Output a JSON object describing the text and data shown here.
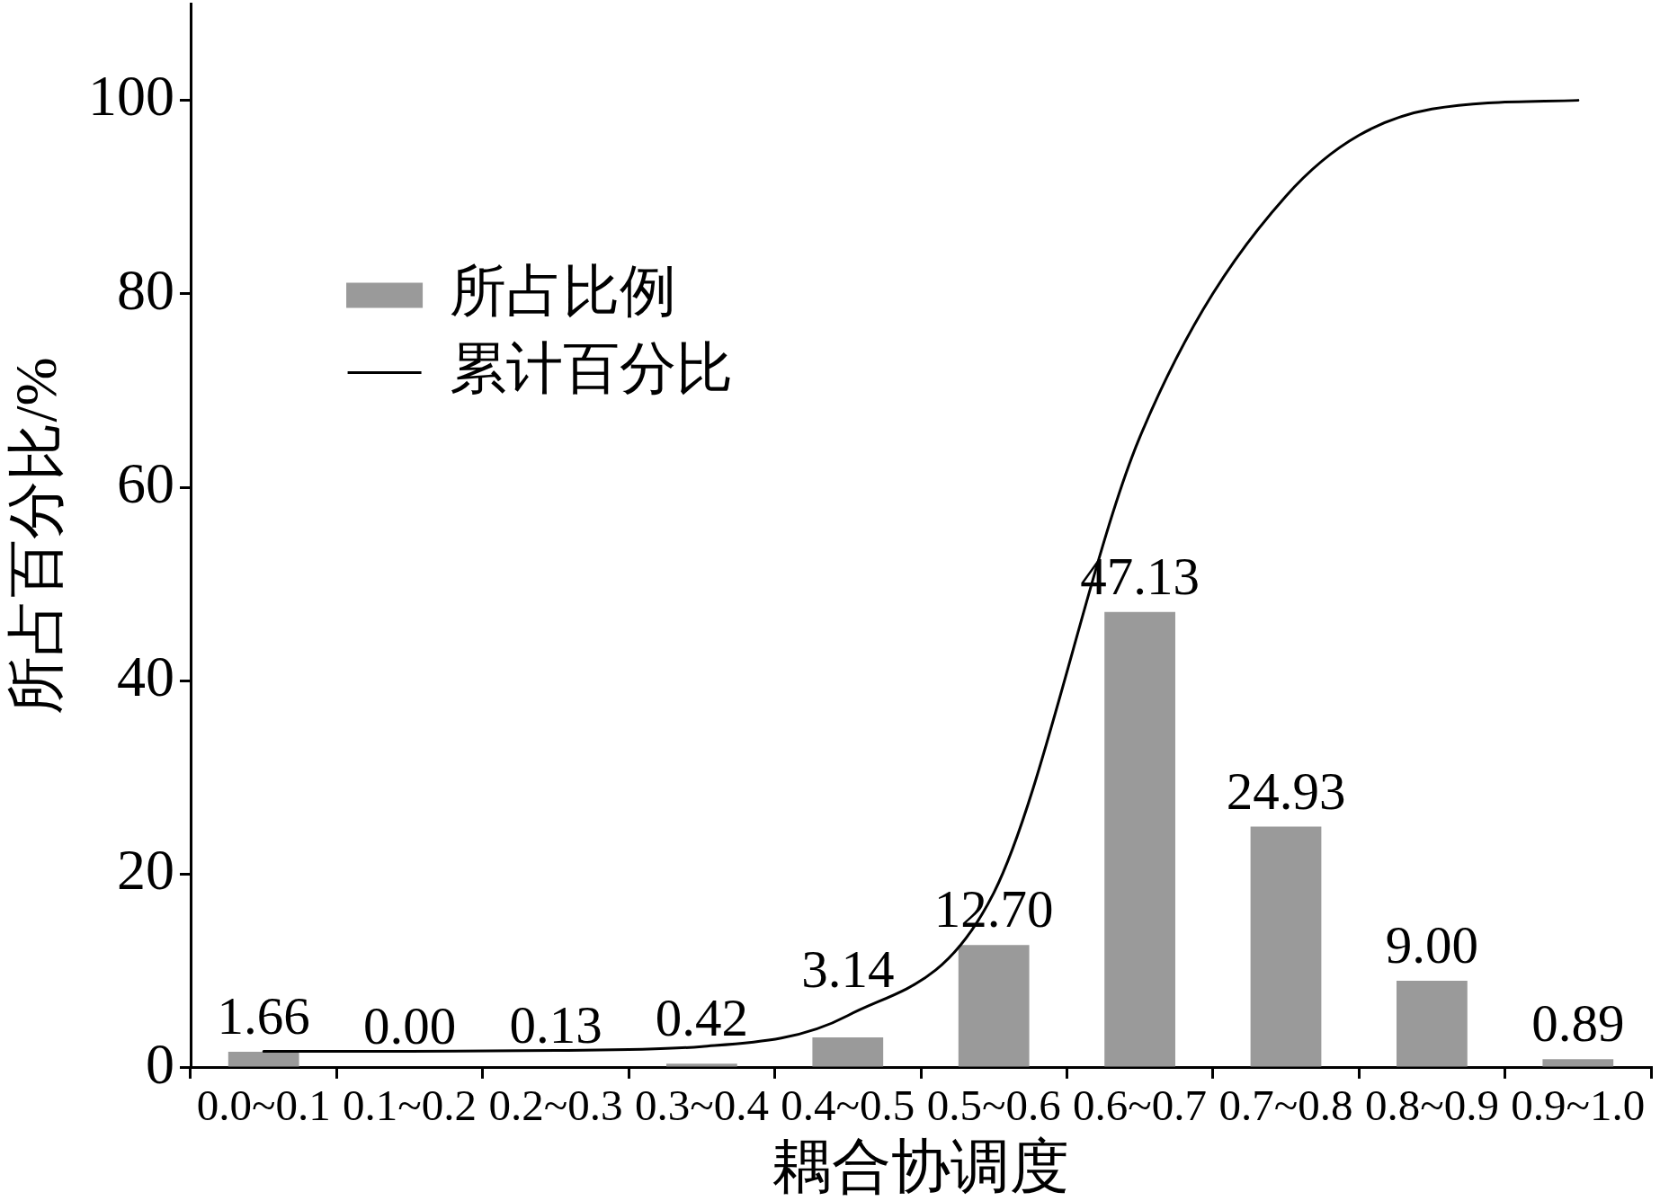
{
  "chart_data": {
    "type": "bar",
    "xlabel": "耦合协调度",
    "ylabel": "所占百分比/%",
    "categories": [
      "0.0~0.1",
      "0.1~0.2",
      "0.2~0.3",
      "0.3~0.4",
      "0.4~0.5",
      "0.5~0.6",
      "0.6~0.7",
      "0.7~0.8",
      "0.8~0.9",
      "0.9~1.0"
    ],
    "series": [
      {
        "name": "所占比例",
        "color": "#9a9a9a",
        "values": [
          1.66,
          0,
          0.13,
          0.42,
          3.14,
          12.7,
          47.13,
          24.93,
          9,
          0.89
        ],
        "value_labels": [
          "1.66",
          "0.00",
          "0.13",
          "0.42",
          "3.14",
          "12.70",
          "47.13",
          "24.93",
          "9.00",
          "0.89"
        ]
      },
      {
        "name": "累计百分比",
        "type": "line",
        "color": "#000000",
        "marker": "none",
        "values": [
          1.7,
          1.7,
          1.8,
          2.2,
          5.4,
          18.1,
          65.2,
          90.1,
          99.1,
          100
        ]
      }
    ],
    "ylim": [
      0,
      110
    ],
    "yticks": [
      0,
      20,
      40,
      60,
      80,
      100
    ],
    "legend": "top left"
  }
}
